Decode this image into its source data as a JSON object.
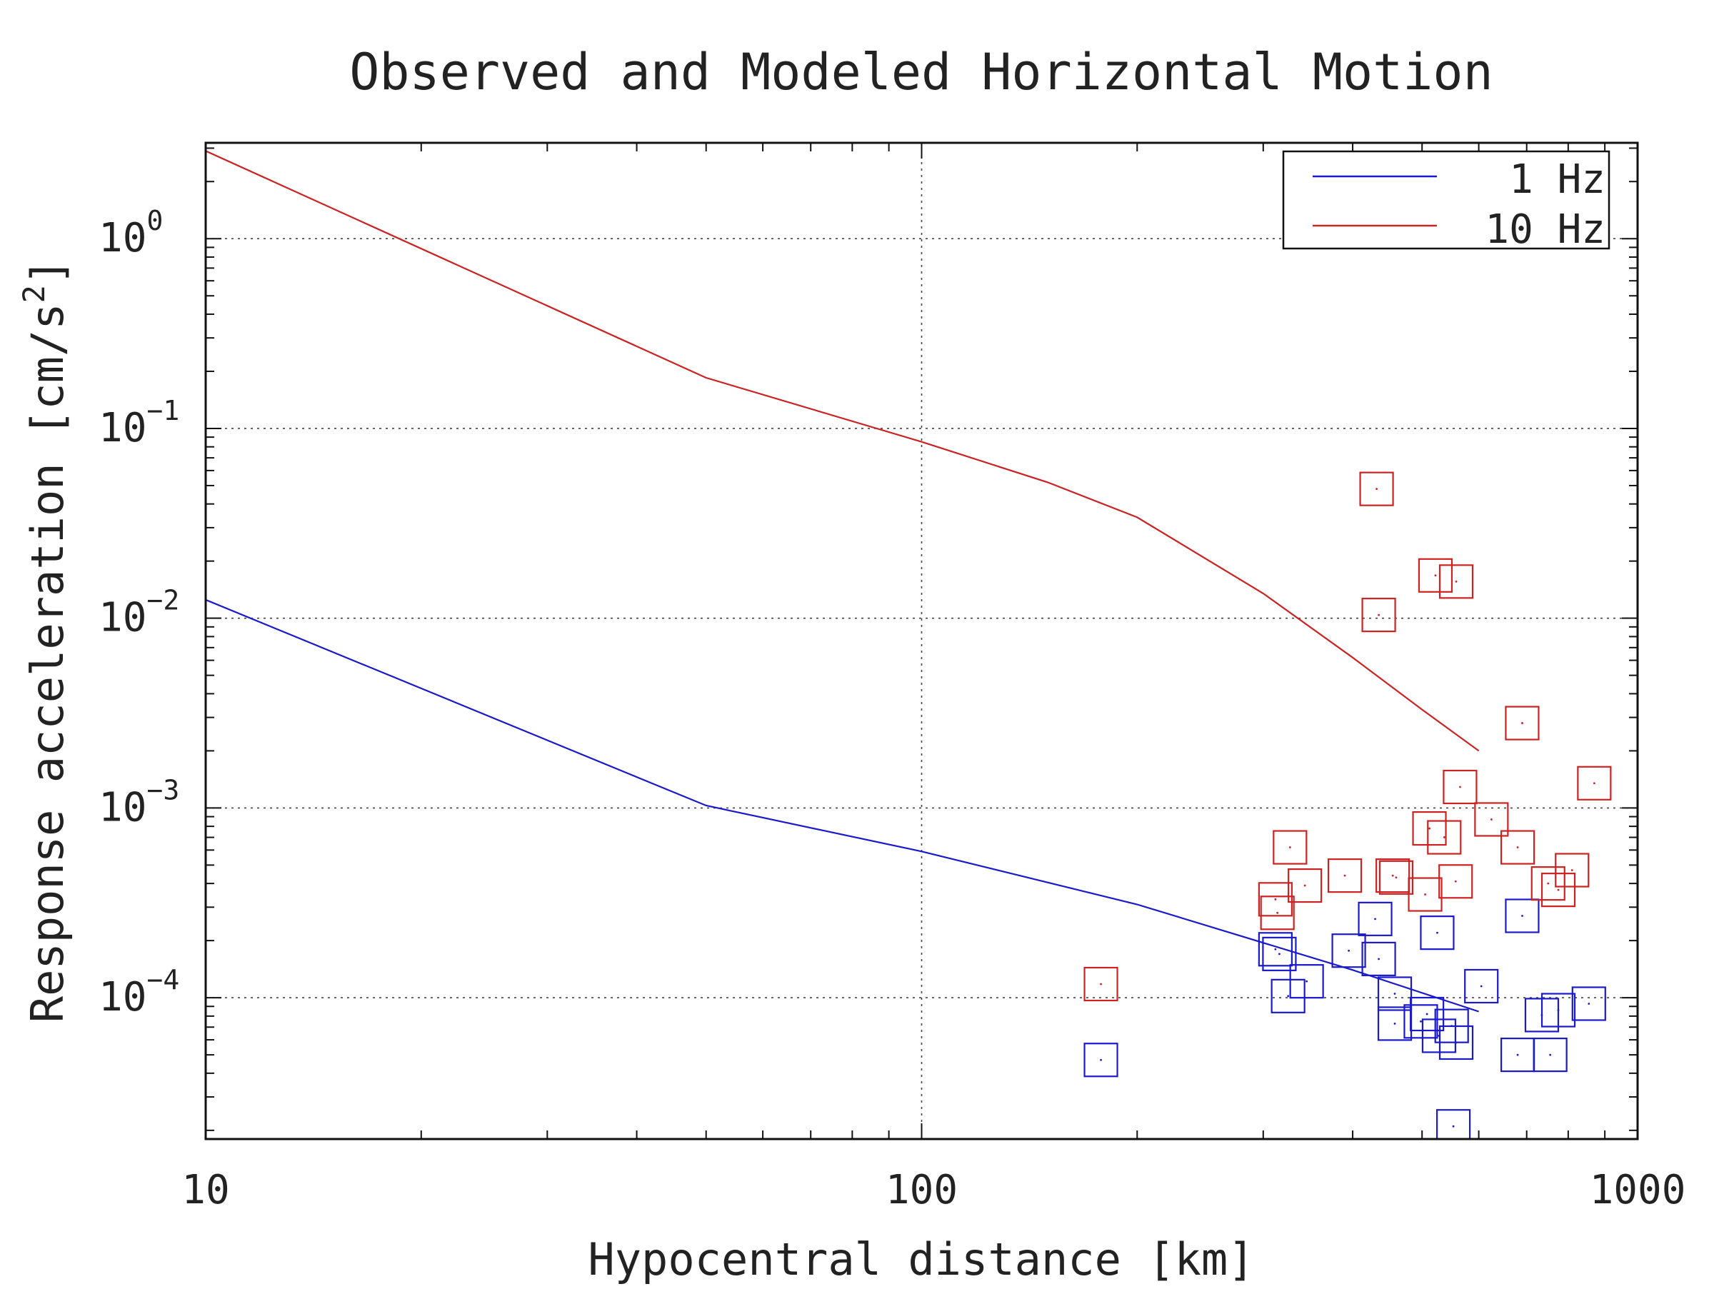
{
  "chart_data": {
    "type": "scatter",
    "title": "Observed and Modeled Horizontal Motion",
    "xlabel": "Hypocentral distance [km]",
    "ylabel_main": "Response acceleration [cm/s",
    "ylabel_sup": "2",
    "ylabel_end": "]",
    "x_scale": "log",
    "y_scale": "log",
    "xlim": [
      10,
      1000
    ],
    "ylim": [
      1.8e-05,
      3.2
    ],
    "x_ticks": [
      {
        "value": 10,
        "label": "10"
      },
      {
        "value": 100,
        "label": "100"
      },
      {
        "value": 1000,
        "label": "1000"
      }
    ],
    "y_ticks": [
      {
        "value": 1,
        "base": "10",
        "exp": "0"
      },
      {
        "value": 0.1,
        "base": "10",
        "exp": "−1"
      },
      {
        "value": 0.01,
        "base": "10",
        "exp": "−2"
      },
      {
        "value": 0.001,
        "base": "10",
        "exp": "−3"
      },
      {
        "value": 0.0001,
        "base": "10",
        "exp": "−4"
      }
    ],
    "grid": true,
    "legend_position": "top-right",
    "series": [
      {
        "name": "1 Hz",
        "color": "#1a1acc",
        "model_line": [
          [
            10,
            0.0125
          ],
          [
            50,
            0.00103
          ],
          [
            100,
            0.00059
          ],
          [
            200,
            0.00031
          ],
          [
            400,
            0.00014
          ],
          [
            600,
            8.45e-05
          ]
        ],
        "observations": [
          [
            178,
            4.7e-05
          ],
          [
            312,
            0.00018
          ],
          [
            316,
            0.00017
          ],
          [
            325,
            0.000102
          ],
          [
            345,
            0.000122
          ],
          [
            395,
            0.000177
          ],
          [
            430,
            0.00026
          ],
          [
            435,
            0.00016
          ],
          [
            458,
            0.000105
          ],
          [
            458,
            7.3e-05
          ],
          [
            498,
            7.5e-05
          ],
          [
            508,
            8.2e-05
          ],
          [
            525,
            0.00022
          ],
          [
            528,
            6.3e-05
          ],
          [
            550,
            7.1e-05
          ],
          [
            558,
            5.8e-05
          ],
          [
            553,
            2.1e-05
          ],
          [
            605,
            0.000115
          ],
          [
            680,
            5e-05
          ],
          [
            690,
            0.00027
          ],
          [
            735,
            8.1e-05
          ],
          [
            755,
            5e-05
          ],
          [
            775,
            8.6e-05
          ],
          [
            855,
            9.3e-05
          ]
        ]
      },
      {
        "name": "10 Hz",
        "color": "#cc2222",
        "model_line": [
          [
            10,
            2.9
          ],
          [
            50,
            0.185
          ],
          [
            100,
            0.085
          ],
          [
            150,
            0.052
          ],
          [
            200,
            0.034
          ],
          [
            300,
            0.0135
          ],
          [
            400,
            0.0062
          ],
          [
            500,
            0.0033
          ],
          [
            600,
            0.002
          ]
        ],
        "observations": [
          [
            178,
            0.000118
          ],
          [
            312,
            0.00033
          ],
          [
            314,
            0.00028
          ],
          [
            327,
            0.00062
          ],
          [
            343,
            0.00039
          ],
          [
            390,
            0.00044
          ],
          [
            432,
            0.048
          ],
          [
            435,
            0.0104
          ],
          [
            455,
            0.00044
          ],
          [
            460,
            0.00043
          ],
          [
            505,
            0.00035
          ],
          [
            512,
            0.00078
          ],
          [
            522,
            0.0168
          ],
          [
            537,
            0.0007
          ],
          [
            557,
            0.00041
          ],
          [
            558,
            0.0156
          ],
          [
            565,
            0.00129
          ],
          [
            625,
            0.00087
          ],
          [
            680,
            0.00062
          ],
          [
            690,
            0.0028
          ],
          [
            750,
            0.0004
          ],
          [
            775,
            0.00037
          ],
          [
            810,
            0.00047
          ],
          [
            870,
            0.00135
          ]
        ]
      }
    ]
  }
}
